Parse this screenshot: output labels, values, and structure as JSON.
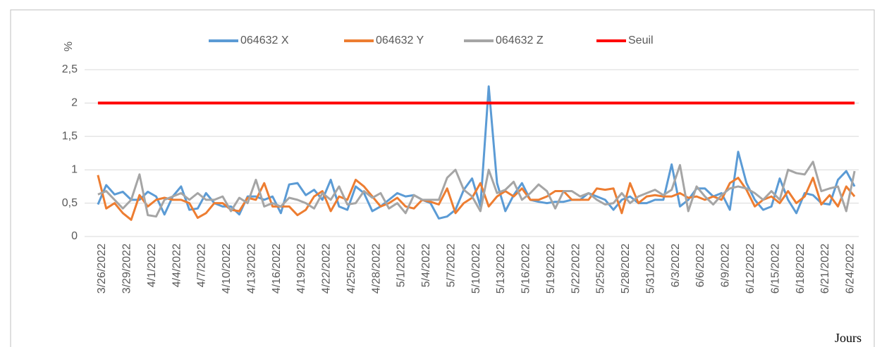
{
  "chart_data": {
    "type": "line",
    "y_label": "%",
    "x_label": "Jours",
    "categories": [
      "3/26/2022",
      null,
      null,
      "3/29/2022",
      null,
      null,
      "4/1/2022",
      null,
      null,
      "4/4/2022",
      null,
      null,
      "4/7/2022",
      null,
      null,
      "4/10/2022",
      null,
      null,
      "4/13/2022",
      null,
      null,
      "4/16/2022",
      null,
      null,
      "4/19/2022",
      null,
      null,
      "4/22/2022",
      null,
      null,
      "4/25/2022",
      null,
      null,
      "4/28/2022",
      null,
      null,
      "5/1/2022",
      null,
      null,
      "5/4/2022",
      null,
      null,
      "5/7/2022",
      null,
      null,
      "5/10/2022",
      null,
      null,
      "5/13/2022",
      null,
      null,
      "5/16/2022",
      null,
      null,
      "5/19/2022",
      null,
      null,
      "5/22/2022",
      null,
      null,
      "5/25/2022",
      null,
      null,
      "5/28/2022",
      null,
      null,
      "5/31/2022",
      null,
      null,
      "6/3/2022",
      null,
      null,
      "6/6/2022",
      null,
      null,
      "6/9/2022",
      null,
      null,
      "6/12/2022",
      null,
      null,
      "6/15/2022",
      null,
      null,
      "6/18/2022",
      null,
      null,
      "6/21/2022",
      null,
      null,
      "6/24/2022",
      null
    ],
    "series": [
      {
        "name": "064632 X",
        "color": "#5b9bd5",
        "values": [
          0.48,
          0.77,
          0.63,
          0.67,
          0.55,
          0.55,
          0.67,
          0.6,
          0.33,
          0.6,
          0.75,
          0.4,
          0.42,
          0.65,
          0.5,
          0.45,
          0.45,
          0.33,
          0.6,
          0.6,
          0.55,
          0.6,
          0.35,
          0.78,
          0.8,
          0.62,
          0.7,
          0.55,
          0.85,
          0.45,
          0.4,
          0.75,
          0.65,
          0.38,
          0.45,
          0.55,
          0.65,
          0.6,
          0.62,
          0.55,
          0.5,
          0.27,
          0.3,
          0.4,
          0.7,
          0.87,
          0.45,
          2.25,
          0.8,
          0.38,
          0.62,
          0.8,
          0.55,
          0.52,
          0.5,
          0.52,
          0.52,
          0.55,
          0.55,
          0.65,
          0.6,
          0.55,
          0.4,
          0.55,
          0.6,
          0.5,
          0.5,
          0.55,
          0.55,
          1.08,
          0.45,
          0.55,
          0.72,
          0.72,
          0.6,
          0.65,
          0.4,
          1.27,
          0.8,
          0.55,
          0.4,
          0.45,
          0.87,
          0.55,
          0.35,
          0.65,
          0.62,
          0.5,
          0.48,
          0.85,
          0.98,
          0.75
        ]
      },
      {
        "name": "064632 Y",
        "color": "#ed7d31",
        "values": [
          0.92,
          0.42,
          0.5,
          0.35,
          0.25,
          0.62,
          0.45,
          0.55,
          0.58,
          0.55,
          0.55,
          0.5,
          0.28,
          0.35,
          0.5,
          0.5,
          0.4,
          0.38,
          0.58,
          0.55,
          0.8,
          0.45,
          0.45,
          0.45,
          0.32,
          0.4,
          0.6,
          0.68,
          0.38,
          0.6,
          0.55,
          0.85,
          0.75,
          0.6,
          0.45,
          0.5,
          0.58,
          0.45,
          0.42,
          0.55,
          0.52,
          0.48,
          0.72,
          0.35,
          0.5,
          0.58,
          0.8,
          0.45,
          0.6,
          0.68,
          0.6,
          0.72,
          0.55,
          0.55,
          0.6,
          0.68,
          0.68,
          0.55,
          0.55,
          0.55,
          0.72,
          0.7,
          0.72,
          0.35,
          0.8,
          0.5,
          0.6,
          0.62,
          0.6,
          0.6,
          0.65,
          0.58,
          0.6,
          0.55,
          0.6,
          0.55,
          0.8,
          0.88,
          0.7,
          0.45,
          0.55,
          0.6,
          0.5,
          0.68,
          0.5,
          0.6,
          0.88,
          0.48,
          0.62,
          0.45,
          0.75,
          0.6
        ]
      },
      {
        "name": "064632 Z",
        "color": "#a5a5a5",
        "values": [
          0.63,
          0.68,
          0.55,
          0.42,
          0.55,
          0.93,
          0.32,
          0.3,
          0.55,
          0.6,
          0.65,
          0.55,
          0.65,
          0.55,
          0.55,
          0.6,
          0.38,
          0.58,
          0.5,
          0.85,
          0.45,
          0.5,
          0.45,
          0.58,
          0.55,
          0.5,
          0.42,
          0.65,
          0.55,
          0.75,
          0.48,
          0.5,
          0.68,
          0.58,
          0.65,
          0.42,
          0.5,
          0.35,
          0.62,
          0.55,
          0.55,
          0.55,
          0.88,
          1.0,
          0.7,
          0.6,
          0.38,
          1.0,
          0.65,
          0.7,
          0.82,
          0.55,
          0.65,
          0.78,
          0.68,
          0.42,
          0.68,
          0.68,
          0.6,
          0.65,
          0.55,
          0.48,
          0.5,
          0.65,
          0.5,
          0.6,
          0.65,
          0.7,
          0.62,
          0.7,
          1.07,
          0.38,
          0.75,
          0.6,
          0.48,
          0.62,
          0.72,
          0.75,
          0.72,
          0.65,
          0.55,
          0.68,
          0.55,
          1.0,
          0.95,
          0.93,
          1.12,
          0.68,
          0.72,
          0.75,
          0.38,
          0.98
        ]
      },
      {
        "name": "Seuil",
        "color": "#ff0000",
        "values": [
          2,
          2,
          2,
          2,
          2,
          2,
          2,
          2,
          2,
          2,
          2,
          2,
          2,
          2,
          2,
          2,
          2,
          2,
          2,
          2,
          2,
          2,
          2,
          2,
          2,
          2,
          2,
          2,
          2,
          2,
          2,
          2,
          2,
          2,
          2,
          2,
          2,
          2,
          2,
          2,
          2,
          2,
          2,
          2,
          2,
          2,
          2,
          2,
          2,
          2,
          2,
          2,
          2,
          2,
          2,
          2,
          2,
          2,
          2,
          2,
          2,
          2,
          2,
          2,
          2,
          2,
          2,
          2,
          2,
          2,
          2,
          2,
          2,
          2,
          2,
          2,
          2,
          2,
          2,
          2,
          2,
          2,
          2,
          2,
          2,
          2,
          2,
          2,
          2,
          2,
          2,
          2
        ]
      }
    ],
    "ylim": [
      0,
      2.5
    ],
    "yticks": [
      0,
      {
        "value": 0.5,
        "label": "0,5"
      },
      1,
      {
        "value": 1.5,
        "label": "1,5"
      },
      2,
      {
        "value": 2.5,
        "label": "2,5"
      }
    ],
    "grid": true,
    "legend": "top"
  }
}
